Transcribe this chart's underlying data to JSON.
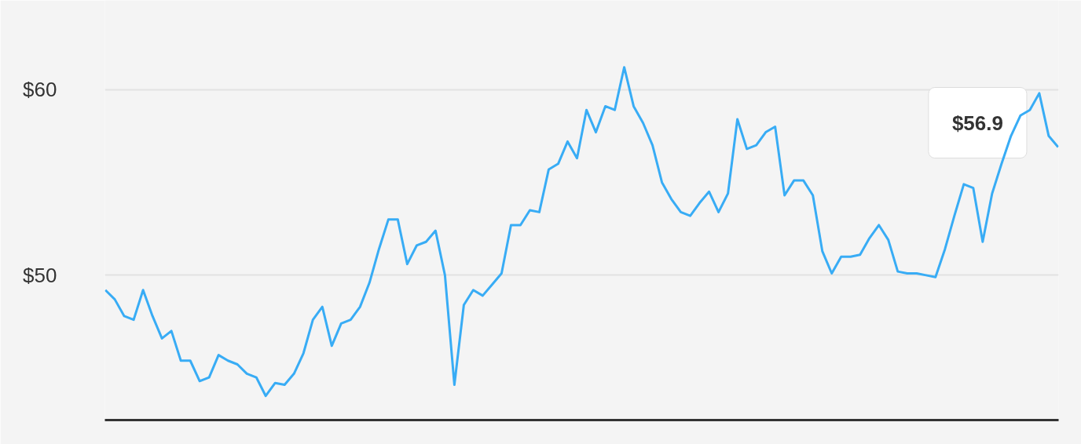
{
  "chart_data": {
    "type": "line",
    "categories": [
      null,
      null,
      null,
      null,
      null,
      null,
      null,
      null,
      null,
      null,
      null,
      null,
      null,
      null,
      null,
      null,
      null,
      null,
      null,
      null,
      null,
      null,
      null,
      null,
      null,
      null,
      null,
      null,
      null,
      null,
      null,
      null,
      null,
      null,
      null,
      null,
      null,
      null,
      null,
      null,
      null,
      null,
      null,
      null,
      null,
      null,
      null,
      null,
      null,
      null,
      null,
      null,
      null,
      null,
      null,
      null,
      null,
      null,
      null,
      null,
      null,
      null,
      null,
      null,
      null,
      null,
      null,
      null,
      null,
      null,
      null,
      null,
      null,
      null,
      null,
      null,
      null,
      null,
      null,
      null,
      null,
      null,
      null,
      null,
      null,
      null,
      null,
      null,
      null,
      null,
      null,
      null,
      null,
      null,
      null,
      null,
      null,
      null,
      null,
      null,
      null,
      null
    ],
    "series": [
      {
        "color": "#38acf5",
        "values": [
          49.2,
          48.7,
          47.8,
          47.6,
          49.2,
          47.8,
          46.6,
          47.0,
          45.4,
          45.4,
          44.3,
          44.5,
          45.7,
          45.4,
          45.2,
          44.7,
          44.5,
          43.5,
          44.2,
          44.1,
          44.7,
          45.8,
          47.6,
          48.3,
          46.2,
          47.4,
          47.6,
          48.3,
          49.6,
          51.4,
          53.0,
          53.0,
          50.6,
          51.6,
          51.8,
          52.4,
          50.0,
          44.1,
          48.4,
          49.2,
          48.9,
          49.5,
          50.1,
          52.7,
          52.7,
          53.5,
          53.4,
          55.7,
          56.0,
          57.2,
          56.3,
          58.9,
          57.7,
          59.1,
          58.9,
          61.2,
          59.1,
          58.2,
          57.0,
          55.0,
          54.1,
          53.4,
          53.2,
          53.9,
          54.5,
          53.4,
          54.4,
          58.4,
          56.8,
          57.0,
          57.7,
          58.0,
          54.3,
          55.1,
          55.1,
          54.3,
          51.3,
          50.1,
          51.0,
          51.0,
          51.1,
          52.0,
          52.7,
          51.9,
          50.2,
          50.1,
          50.1,
          50.0,
          49.9,
          51.4,
          53.2,
          54.9,
          54.7,
          51.8,
          54.4,
          56.0,
          57.5,
          58.6,
          58.9,
          59.8,
          57.5,
          56.9
        ]
      }
    ],
    "ylim": [
      42.2,
      64.8
    ],
    "yticks": [
      {
        "value": 50,
        "label": "$50"
      },
      {
        "value": 60,
        "label": "$60"
      }
    ],
    "grid": "y",
    "marker": "none",
    "annotations": [
      "$56.9"
    ]
  }
}
